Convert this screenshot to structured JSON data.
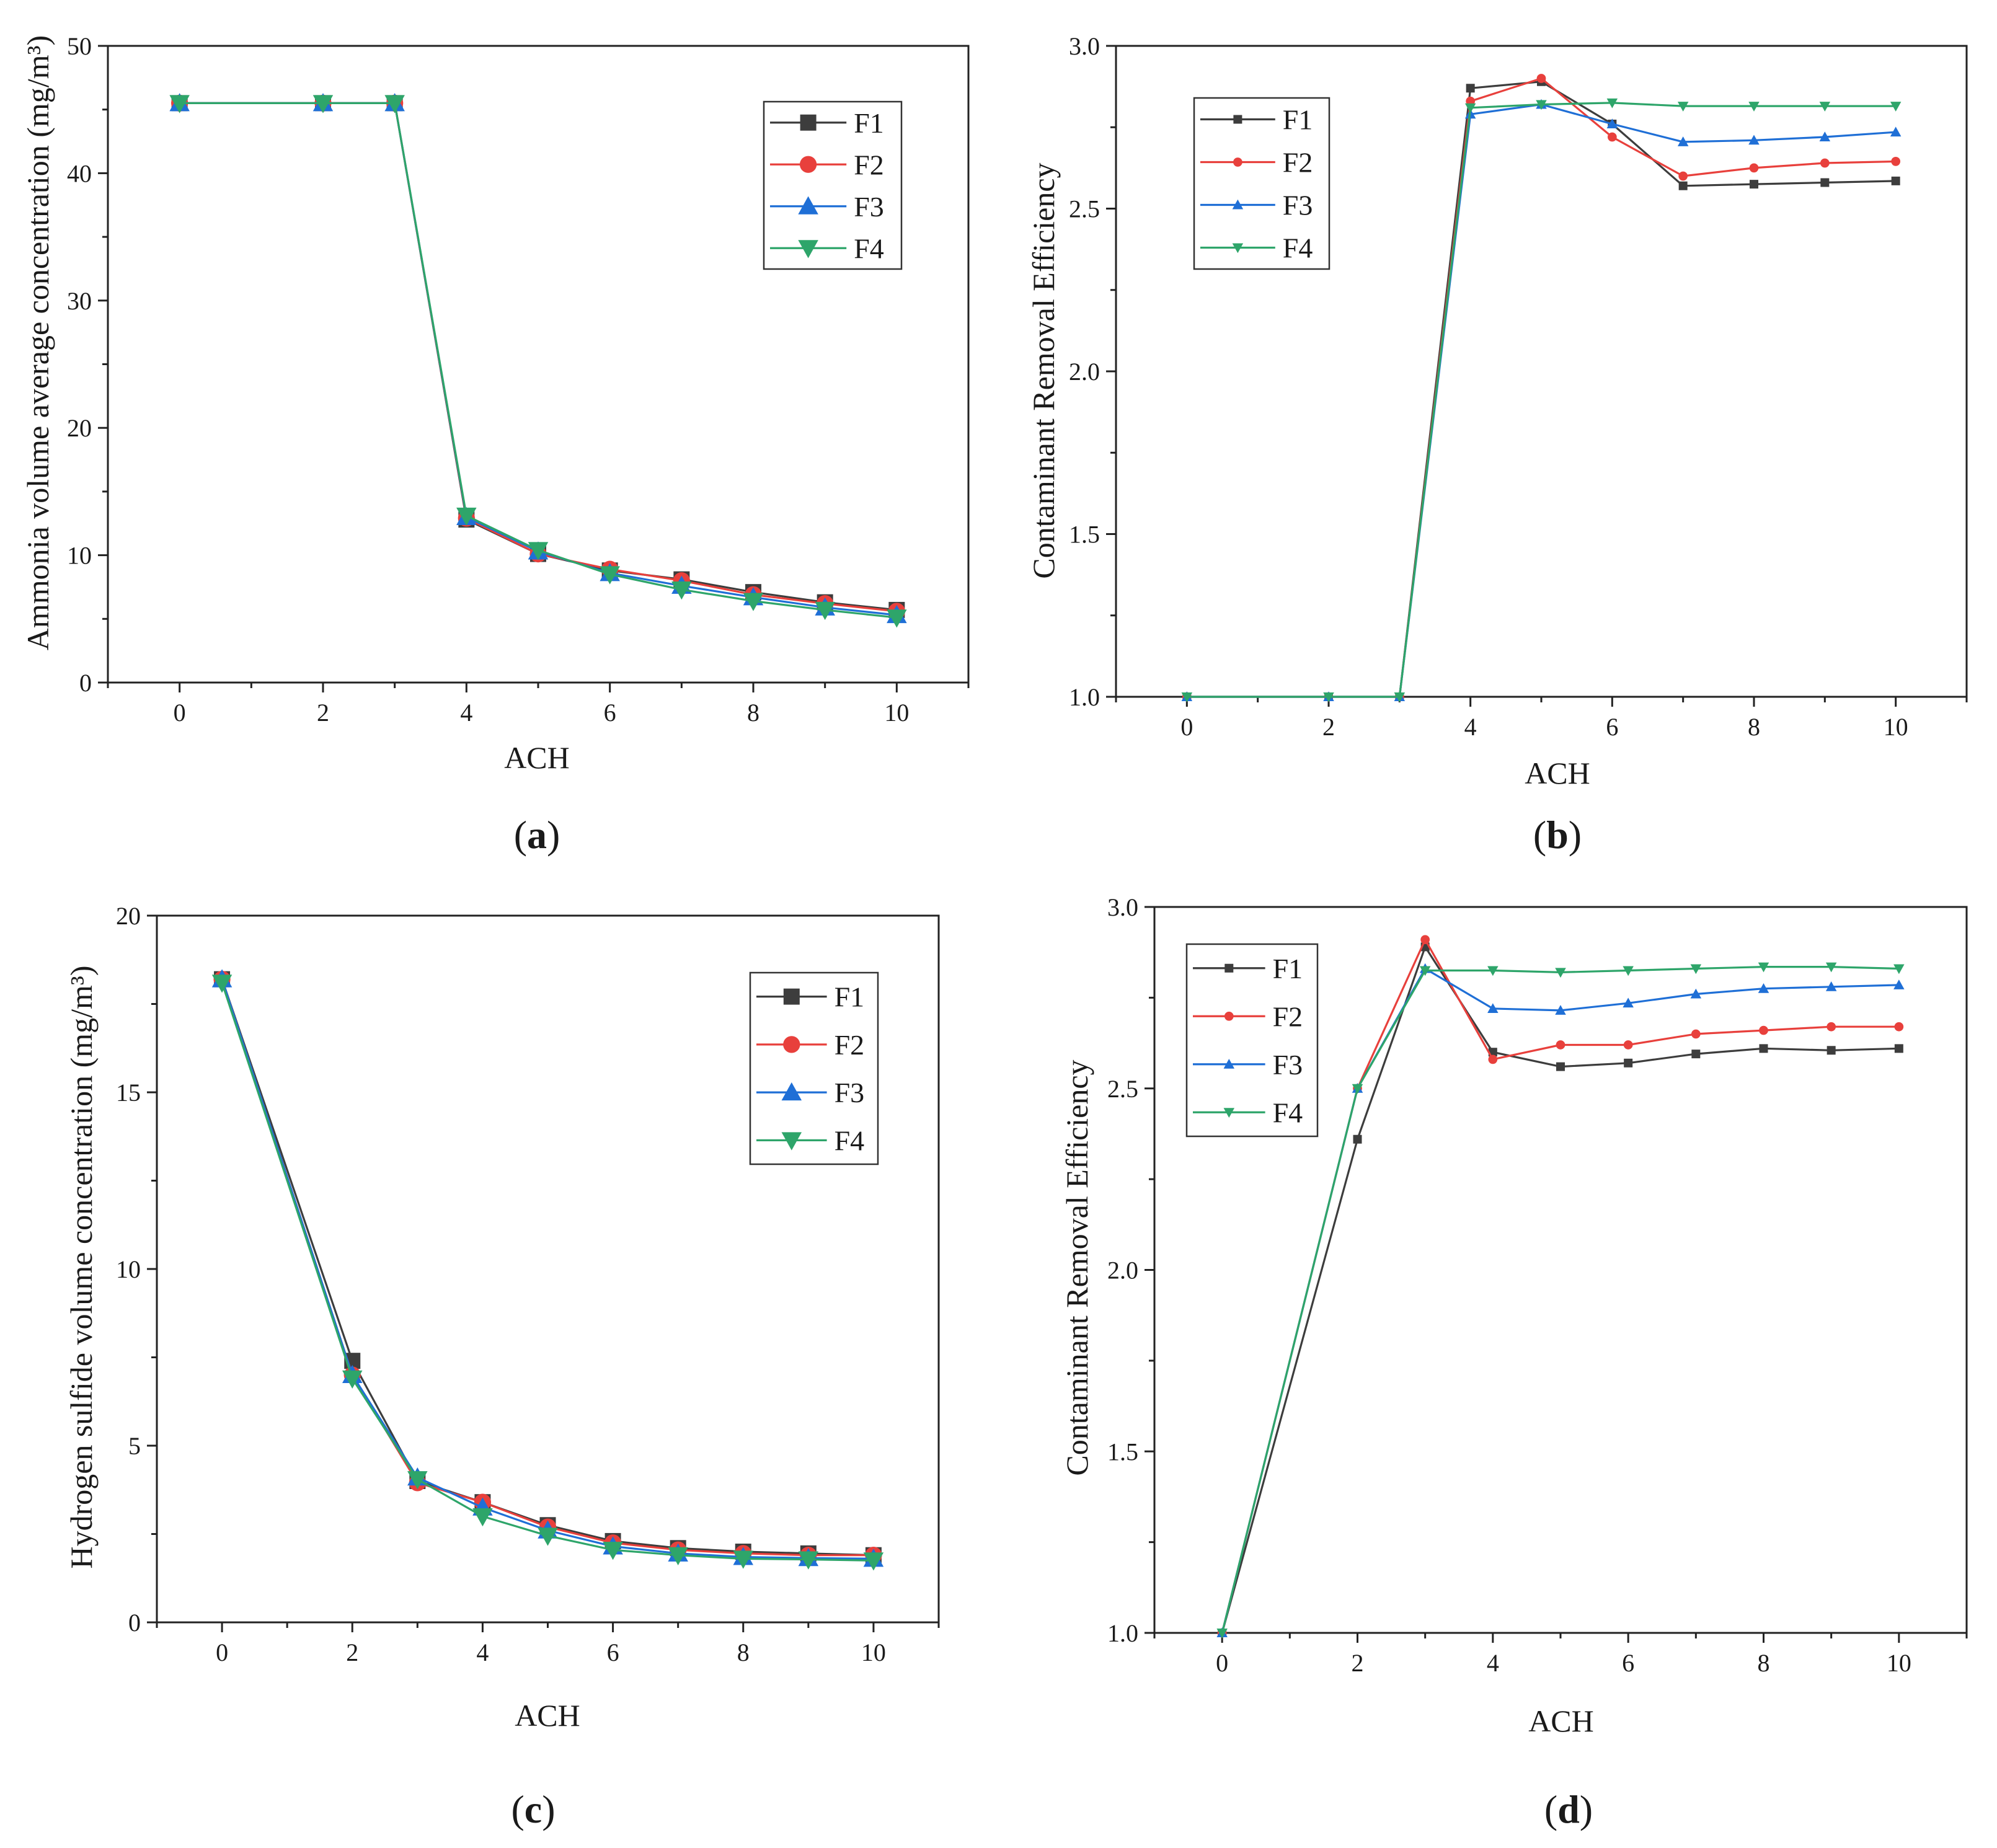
{
  "figure": {
    "series_colors": {
      "F1": "#3d3d3d",
      "F2": "#e8403c",
      "F3": "#1f6fd6",
      "F4": "#2ea56a"
    },
    "legend_labels": [
      "F1",
      "F2",
      "F3",
      "F4"
    ],
    "panel_labels": [
      {
        "open": "(",
        "letter": "a",
        "close": ")"
      },
      {
        "open": "(",
        "letter": "b",
        "close": ")"
      },
      {
        "open": "(",
        "letter": "c",
        "close": ")"
      },
      {
        "open": "(",
        "letter": "d",
        "close": ")"
      }
    ]
  },
  "chart_data": [
    {
      "panel": "a",
      "type": "line",
      "xlabel": "ACH",
      "ylabel": "Ammonia volume average concentration (mg/m³)",
      "xlim": [
        -1,
        11
      ],
      "ylim": [
        0,
        50
      ],
      "xticks": [
        0,
        2,
        4,
        6,
        8,
        10
      ],
      "yticks": [
        0,
        10,
        20,
        30,
        40,
        50
      ],
      "xtick_labels": [
        "0",
        "2",
        "4",
        "6",
        "8",
        "10"
      ],
      "ytick_labels": [
        "0",
        "10",
        "20",
        "30",
        "40",
        "50"
      ],
      "x": [
        0,
        2,
        3,
        4,
        5,
        6,
        7,
        8,
        9,
        10
      ],
      "legend_position": "top-right",
      "marker_size": "large",
      "series": [
        {
          "name": "F1",
          "marker": "square",
          "values": [
            45.5,
            45.5,
            45.5,
            12.8,
            10.1,
            8.8,
            8.1,
            7.1,
            6.3,
            5.7
          ]
        },
        {
          "name": "F2",
          "marker": "circle",
          "values": [
            45.5,
            45.5,
            45.5,
            12.9,
            10.1,
            8.9,
            8.0,
            6.9,
            6.2,
            5.6
          ]
        },
        {
          "name": "F3",
          "marker": "triangle-up",
          "values": [
            45.5,
            45.5,
            45.5,
            13.0,
            10.3,
            8.6,
            7.6,
            6.7,
            5.9,
            5.3
          ]
        },
        {
          "name": "F4",
          "marker": "triangle-down",
          "values": [
            45.5,
            45.5,
            45.5,
            13.1,
            10.4,
            8.5,
            7.3,
            6.4,
            5.7,
            5.1
          ]
        }
      ]
    },
    {
      "panel": "b",
      "type": "line",
      "xlabel": "ACH",
      "ylabel": "Contaminant Removal Efficiency",
      "xlim": [
        -1,
        11
      ],
      "ylim": [
        1.0,
        3.0
      ],
      "xticks": [
        0,
        2,
        4,
        6,
        8,
        10
      ],
      "yticks": [
        1.0,
        1.5,
        2.0,
        2.5,
        3.0
      ],
      "xtick_labels": [
        "0",
        "2",
        "4",
        "6",
        "8",
        "10"
      ],
      "ytick_labels": [
        "1.0",
        "1.5",
        "2.0",
        "2.5",
        "3.0"
      ],
      "x": [
        0,
        2,
        3,
        4,
        5,
        6,
        7,
        8,
        9,
        10
      ],
      "legend_position": "top-left",
      "marker_size": "small",
      "series": [
        {
          "name": "F1",
          "marker": "square",
          "values": [
            1.0,
            1.0,
            1.0,
            2.87,
            2.89,
            2.76,
            2.57,
            2.575,
            2.58,
            2.585
          ]
        },
        {
          "name": "F2",
          "marker": "circle",
          "values": [
            1.0,
            1.0,
            1.0,
            2.83,
            2.9,
            2.72,
            2.6,
            2.625,
            2.64,
            2.645
          ]
        },
        {
          "name": "F3",
          "marker": "triangle-up",
          "values": [
            1.0,
            1.0,
            1.0,
            2.79,
            2.82,
            2.76,
            2.705,
            2.71,
            2.72,
            2.735
          ]
        },
        {
          "name": "F4",
          "marker": "triangle-down",
          "values": [
            1.0,
            1.0,
            1.0,
            2.81,
            2.82,
            2.825,
            2.815,
            2.815,
            2.815,
            2.815
          ]
        }
      ]
    },
    {
      "panel": "c",
      "type": "line",
      "xlabel": "ACH",
      "ylabel": "Hydrogen sulfide volume concentration (mg/m³)",
      "xlim": [
        -1,
        11
      ],
      "ylim": [
        0,
        20
      ],
      "xticks": [
        0,
        2,
        4,
        6,
        8,
        10
      ],
      "yticks": [
        0,
        5,
        10,
        15,
        20
      ],
      "xtick_labels": [
        "0",
        "2",
        "4",
        "6",
        "8",
        "10"
      ],
      "ytick_labels": [
        "0",
        "5",
        "10",
        "15",
        "20"
      ],
      "x": [
        0,
        2,
        3,
        4,
        5,
        6,
        7,
        8,
        9,
        10
      ],
      "legend_position": "top-right",
      "marker_size": "large",
      "series": [
        {
          "name": "F1",
          "marker": "square",
          "values": [
            18.2,
            7.4,
            4.0,
            3.4,
            2.75,
            2.3,
            2.1,
            2.0,
            1.95,
            1.9
          ]
        },
        {
          "name": "F2",
          "marker": "circle",
          "values": [
            18.2,
            7.0,
            3.95,
            3.4,
            2.7,
            2.25,
            2.05,
            1.95,
            1.9,
            1.9
          ]
        },
        {
          "name": "F3",
          "marker": "triangle-up",
          "values": [
            18.2,
            7.0,
            4.1,
            3.25,
            2.6,
            2.15,
            1.95,
            1.85,
            1.82,
            1.8
          ]
        },
        {
          "name": "F4",
          "marker": "triangle-down",
          "values": [
            18.1,
            6.9,
            4.05,
            3.0,
            2.45,
            2.05,
            1.9,
            1.8,
            1.78,
            1.75
          ]
        }
      ]
    },
    {
      "panel": "d",
      "type": "line",
      "xlabel": "ACH",
      "ylabel": "Contaminant Removal Efficiency",
      "xlim": [
        -1,
        11
      ],
      "ylim": [
        1.0,
        3.0
      ],
      "xticks": [
        0,
        2,
        4,
        6,
        8,
        10
      ],
      "yticks": [
        1.0,
        1.5,
        2.0,
        2.5,
        3.0
      ],
      "xtick_labels": [
        "0",
        "2",
        "4",
        "6",
        "8",
        "10"
      ],
      "ytick_labels": [
        "1.0",
        "1.5",
        "2.0",
        "2.5",
        "3.0"
      ],
      "x": [
        0,
        2,
        3,
        4,
        5,
        6,
        7,
        8,
        9,
        10
      ],
      "legend_position": "top-left",
      "marker_size": "small",
      "series": [
        {
          "name": "F1",
          "marker": "square",
          "values": [
            1.0,
            2.36,
            2.89,
            2.6,
            2.56,
            2.57,
            2.595,
            2.61,
            2.605,
            2.61
          ]
        },
        {
          "name": "F2",
          "marker": "circle",
          "values": [
            1.0,
            2.5,
            2.91,
            2.58,
            2.62,
            2.62,
            2.65,
            2.66,
            2.67,
            2.67
          ]
        },
        {
          "name": "F3",
          "marker": "triangle-up",
          "values": [
            1.0,
            2.5,
            2.83,
            2.72,
            2.715,
            2.735,
            2.76,
            2.775,
            2.78,
            2.785
          ]
        },
        {
          "name": "F4",
          "marker": "triangle-down",
          "values": [
            1.0,
            2.5,
            2.825,
            2.825,
            2.82,
            2.825,
            2.83,
            2.835,
            2.835,
            2.83
          ]
        }
      ]
    }
  ]
}
